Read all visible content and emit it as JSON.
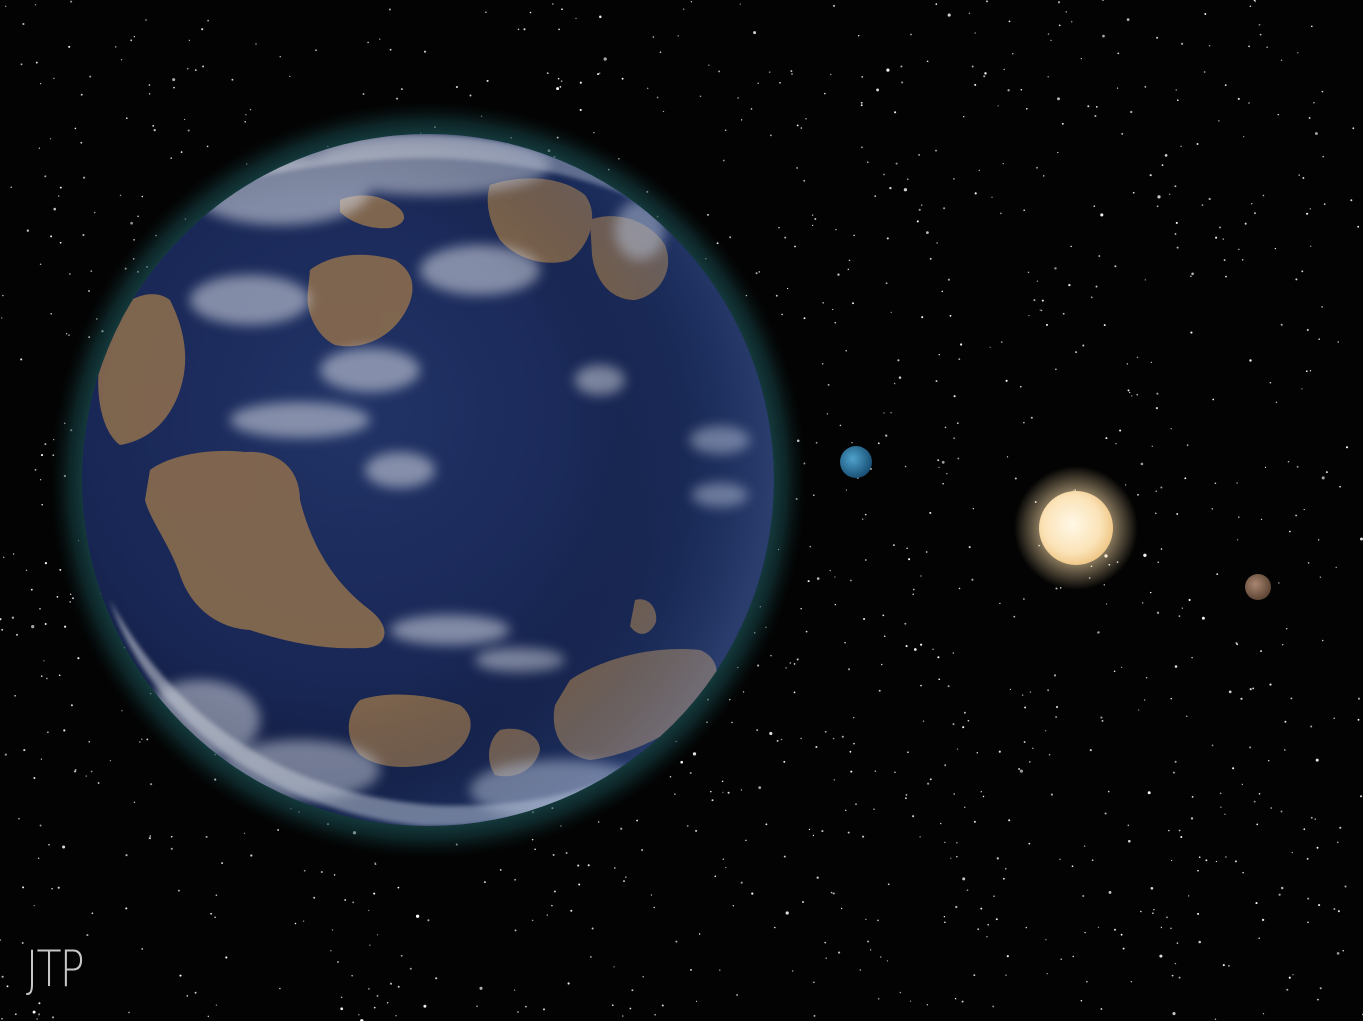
{
  "artwork": {
    "signature": "JTP"
  },
  "colors": {
    "space": "#030303",
    "ocean": "#1b2a55",
    "ocean_dark": "#0d1636",
    "atmosphere_glow": "#1e5a5e",
    "land": "#8c6e4f",
    "cloud": "#d8dce4",
    "star_core": "#fbe6c0",
    "star_glow": "#f7d9a8",
    "inner_planet": "#2d7aa6",
    "outer_planet": "#8a6a54"
  },
  "icons": {
    "main_planet": "planet-icon",
    "small_planet": "planet-icon",
    "star": "star-icon"
  }
}
